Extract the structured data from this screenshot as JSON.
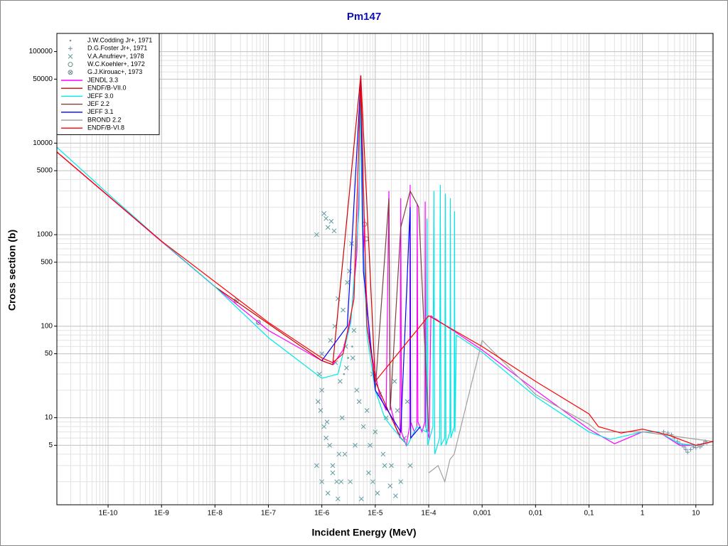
{
  "chart_data": {
    "type": "line",
    "title": "Pm147",
    "xlabel": "Incident Energy (MeV)",
    "ylabel": "Cross section (b)",
    "xscale": "log",
    "yscale": "log",
    "grid": true,
    "minor_grid": true,
    "legend": "upper left",
    "xlim": [
      1.1e-11,
      21
    ],
    "ylim": [
      1.12,
      158000
    ],
    "xticks": [
      {
        "value": 1e-10,
        "label": "1E-10"
      },
      {
        "value": 1e-09,
        "label": "1E-9"
      },
      {
        "value": 1e-08,
        "label": "1E-8"
      },
      {
        "value": 1e-07,
        "label": "1E-7"
      },
      {
        "value": 1e-06,
        "label": "1E-6"
      },
      {
        "value": 1e-05,
        "label": "1E-5"
      },
      {
        "value": 0.0001,
        "label": "1E-4"
      },
      {
        "value": 0.001,
        "label": "0,001"
      },
      {
        "value": 0.01,
        "label": "0,01"
      },
      {
        "value": 0.1,
        "label": "0,1"
      },
      1,
      10
    ],
    "yticks": [
      5,
      10,
      50,
      100,
      500,
      1000,
      5000,
      10000,
      50000,
      100000
    ],
    "series": [
      {
        "name": "J.W.Codding Jr+, 1971",
        "marker": "dot",
        "color": "#6f9aa6",
        "x": [
          2.6e-06,
          3.1e-06,
          3.7e-06
        ],
        "values": [
          30,
          45,
          60
        ]
      },
      {
        "name": "D.G.Foster Jr+, 1971",
        "marker": "plus",
        "color": "#6f8fa0",
        "x": [
          2.5,
          3,
          3.5,
          4,
          4.5,
          5,
          5.5,
          6,
          6.5,
          7,
          8,
          9,
          10,
          11,
          12,
          13,
          14,
          15,
          16
        ],
        "values": [
          7,
          6.8,
          6.5,
          6,
          5.5,
          5.2,
          5,
          4.8,
          4.5,
          4.2,
          4.5,
          4.8,
          4.7,
          5,
          4.8,
          5,
          5.2,
          5.5,
          5.3
        ]
      },
      {
        "name": "V.A.Anufriev+, 1978",
        "marker": "cross",
        "color": "#5f9aa0",
        "x": [
          8e-07,
          1.1e-06,
          9e-07,
          1.2e-06,
          1e-06,
          8.5e-07,
          1.3e-06,
          1.5e-06,
          1.1e-06,
          1.7e-06,
          2e-06,
          1.4e-06,
          9.5e-07,
          1.8e-06,
          2.2e-06,
          2.5e-06,
          1.6e-06,
          2.8e-06,
          3e-06,
          2.4e-06,
          3.3e-06,
          1.9e-06,
          1.2e-06,
          3.6e-06,
          4e-06,
          2.1e-06,
          4.5e-06,
          5e-06,
          6e-06,
          7e-06,
          8e-06,
          9e-06,
          1e-05,
          1.2e-05,
          1.4e-05,
          1.6e-05,
          2e-05,
          2.3e-05,
          2.6e-05,
          3e-05,
          3.5e-05,
          4e-05,
          4.5e-05,
          8e-07,
          1e-06,
          1.3e-06,
          1.6e-06,
          2e-06,
          2.7e-06,
          3.4e-06,
          4.2e-06,
          9e-06,
          1.1e-05,
          1.5e-05,
          1.9e-05,
          2.4e-05,
          1e-06,
          1.25e-06,
          1.45e-06,
          1.75e-06,
          2.3e-06,
          2.9e-06,
          3.8e-06,
          5.5e-06,
          7.5e-06
        ],
        "values": [
          1000,
          1700,
          30,
          1500,
          20,
          15,
          1200,
          1400,
          8,
          1100,
          200,
          5,
          12,
          40,
          25,
          150,
          3,
          60,
          300,
          10,
          400,
          2,
          6,
          800,
          90,
          4,
          20,
          15,
          8,
          12,
          5,
          30,
          7,
          18,
          4,
          10,
          3,
          25,
          12,
          2,
          6,
          15,
          3,
          3,
          2,
          1.5,
          2.5,
          1.3,
          4,
          2,
          5,
          2,
          1.5,
          3,
          1.8,
          1.4,
          50,
          9,
          70,
          100,
          2,
          35,
          45,
          1.3,
          2.5
        ]
      },
      {
        "name": "W.C.Koehler+, 1972",
        "marker": "circle",
        "color": "#6f8f80",
        "x": [
          6.3e-06,
          6.8e-06
        ],
        "values": [
          1300,
          900
        ]
      },
      {
        "name": "G.J.Kirouac+, 1973",
        "marker": "circle-cross",
        "color": "#708890",
        "x": [
          2.5e-08,
          6.5e-08
        ],
        "values": [
          190,
          110
        ]
      },
      {
        "name": "JENDL 3.3",
        "color": "#ff00ff",
        "x": [
          1.1e-11,
          1e-10,
          1e-09,
          1e-08,
          1e-07,
          1e-06,
          1.6e-06,
          2.5e-06,
          3.5e-06,
          4.5e-06,
          5.1e-06,
          5.36e-06,
          5.6e-06,
          6e-06,
          6.3e-06,
          6.6e-06,
          8e-06,
          1.2e-05,
          1.6e-05,
          1.8e-05,
          1.9e-05,
          2.4e-05,
          2.9e-05,
          3e-05,
          3.1e-05,
          3.8e-05,
          4.4e-05,
          4.5e-05,
          4.6e-05,
          5.4e-05,
          6e-05,
          6.1e-05,
          6.3e-05,
          7.5e-05,
          8.5e-05,
          8.6e-05,
          8.8e-05,
          0.000102,
          0.00011,
          0.001,
          0.01,
          0.1,
          0.3,
          1,
          2,
          5,
          10,
          21
        ],
        "values": [
          8000,
          2650,
          840,
          270,
          90,
          42,
          38,
          55,
          120,
          600,
          5000,
          55000,
          3000,
          500,
          1500,
          300,
          60,
          18,
          12,
          3000,
          14,
          8,
          6,
          2500,
          7,
          5,
          8,
          3500,
          9,
          7,
          8,
          2200,
          9,
          7,
          9,
          2300,
          8,
          6,
          130,
          55,
          20,
          7.5,
          5.2,
          7,
          7,
          5,
          5,
          5.5
        ]
      },
      {
        "name": "ENDF/B-VII.0",
        "color": "#d00000",
        "x": [
          1.1e-11,
          1e-08,
          1e-06,
          1.6e-06,
          5.36e-06,
          1e-05,
          2e-05,
          3e-05,
          4e-05
        ],
        "values": [
          8000,
          270,
          42,
          38,
          55000,
          25,
          10,
          6,
          5
        ]
      },
      {
        "name": "JEFF 3.0",
        "color": "#00e8e8",
        "x": [
          1.1e-11,
          1e-10,
          1e-09,
          1e-08,
          1e-07,
          1e-06,
          2e-06,
          3.5e-06,
          5e-06,
          5.36e-06,
          5.7e-06,
          7e-06,
          1e-05,
          1.5e-05,
          2e-05,
          4e-05,
          6e-05,
          9e-05,
          9.3e-05,
          9.6e-05,
          0.00012,
          0.000125,
          0.00013,
          0.00016,
          0.000165,
          0.00017,
          0.0002,
          0.000205,
          0.00021,
          0.00025,
          0.000255,
          0.00026,
          0.0003,
          0.000305,
          0.00031,
          0.00033,
          0.001,
          0.01,
          0.1,
          0.25,
          1,
          2,
          5,
          10,
          21
        ],
        "values": [
          9000,
          2800,
          850,
          270,
          75,
          27,
          30,
          110,
          2000,
          40000,
          1500,
          80,
          20,
          10,
          8,
          5,
          8,
          7,
          1500,
          5,
          8,
          3000,
          4,
          6,
          3500,
          5,
          6,
          2800,
          5,
          7,
          2500,
          6,
          8,
          1800,
          7,
          80,
          52,
          17,
          7,
          5.8,
          7,
          7,
          5.2,
          5,
          5.5
        ]
      },
      {
        "name": "JEF 2.2",
        "color": "#804040",
        "x": [
          1e-05,
          1.8e-05,
          1.9e-05,
          3e-05,
          4.5e-05,
          6.5e-05,
          0.0001
        ],
        "values": [
          20,
          2500,
          12,
          1200,
          3000,
          2000,
          7
        ]
      },
      {
        "name": "JEFF 3.1",
        "color": "#0000ff",
        "x": [
          1e-06,
          3e-06,
          5.36e-06,
          6e-06,
          1e-05,
          3e-05,
          4.5e-05,
          4.6e-05,
          7e-05
        ],
        "values": [
          42,
          100,
          50000,
          400,
          20,
          7,
          2000,
          6,
          8
        ]
      },
      {
        "name": "BROND 2.2",
        "color": "#a0a0a0",
        "x": [
          0.0001,
          0.00015,
          0.0002,
          0.00025,
          0.0003,
          0.001,
          0.01,
          0.1,
          0.15,
          1,
          21
        ],
        "values": [
          2.5,
          3,
          2,
          3.5,
          4,
          70,
          18,
          8.5,
          7,
          7,
          5.5
        ]
      },
      {
        "name": "ENDF/B-VI.8",
        "color": "#ff0000",
        "x": [
          1.1e-11,
          1e-09,
          1e-07,
          1e-06,
          1.6e-06,
          2.5e-06,
          4e-06,
          5.36e-06,
          7e-06,
          1e-05,
          0.0001,
          0.001,
          0.01,
          0.1,
          0.15,
          0.4,
          1,
          3,
          10,
          21
        ],
        "values": [
          8000,
          850,
          110,
          45,
          40,
          50,
          200,
          50000,
          100,
          25,
          130,
          60,
          25,
          11,
          8,
          6.8,
          7.5,
          6.5,
          5,
          5.5
        ]
      }
    ]
  }
}
